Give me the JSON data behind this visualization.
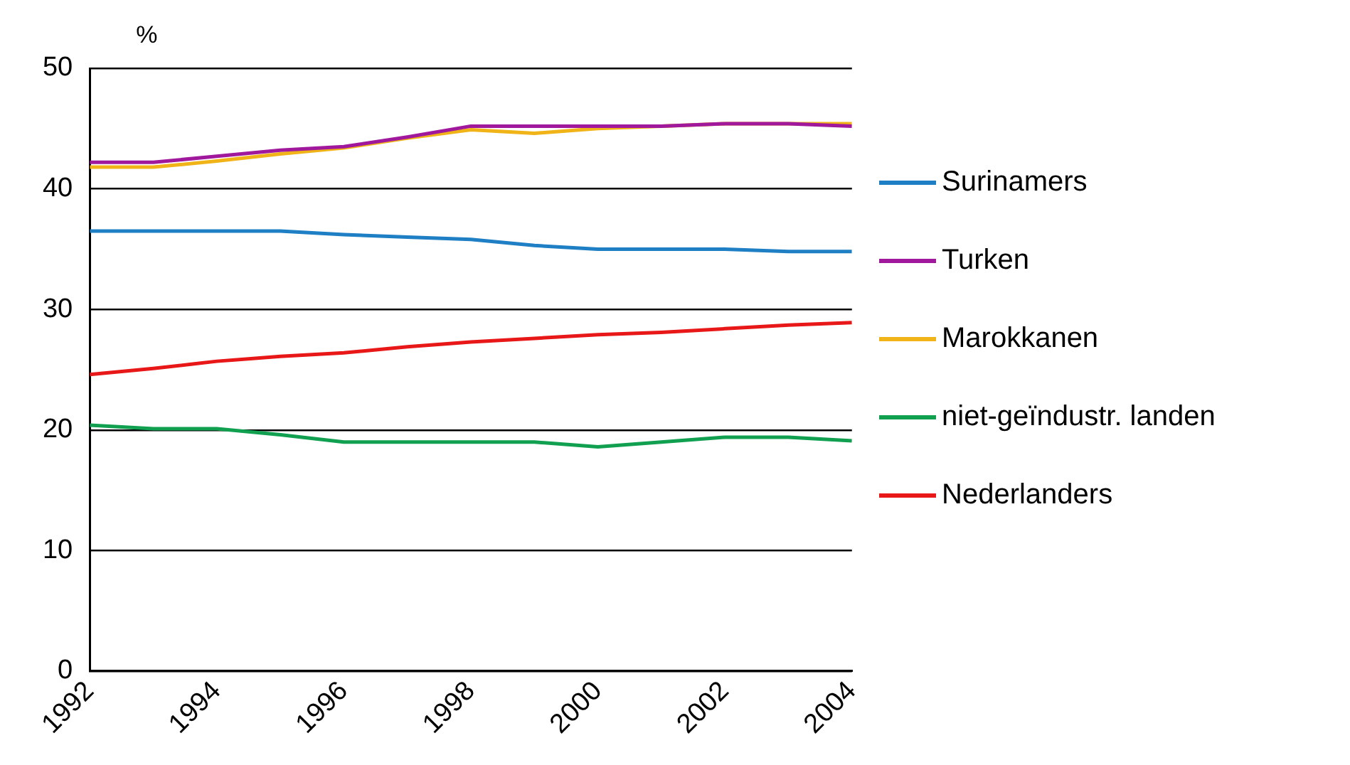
{
  "chart_data": {
    "type": "line",
    "ylabel": "%",
    "x": [
      1992,
      1993,
      1994,
      1995,
      1996,
      1997,
      1998,
      1999,
      2000,
      2001,
      2002,
      2003,
      2004
    ],
    "xlim": [
      1992,
      2004
    ],
    "xticks": [
      1992,
      1994,
      1996,
      1998,
      2000,
      2002,
      2004
    ],
    "ylim": [
      0,
      50
    ],
    "yticks": [
      0,
      10,
      20,
      30,
      40,
      50
    ],
    "grid": "y",
    "legend": "right",
    "series": [
      {
        "name": "Surinamers",
        "color": "#1f7fc4",
        "values": [
          36.5,
          36.5,
          36.5,
          36.5,
          36.2,
          36.0,
          35.8,
          35.3,
          35.0,
          35.0,
          35.0,
          34.8,
          34.8
        ]
      },
      {
        "name": "Turken",
        "color": "#a0189c",
        "values": [
          42.2,
          42.2,
          42.7,
          43.2,
          43.5,
          44.3,
          45.2,
          45.2,
          45.2,
          45.2,
          45.4,
          45.4,
          45.2
        ]
      },
      {
        "name": "Marokkanen",
        "color": "#f0b419",
        "values": [
          41.8,
          41.8,
          42.3,
          42.9,
          43.4,
          44.2,
          44.9,
          44.6,
          45.0,
          45.2,
          45.4,
          45.4,
          45.4
        ]
      },
      {
        "name": "niet-geïndustr. landen",
        "color": "#10a050",
        "values": [
          20.4,
          20.1,
          20.1,
          19.6,
          19.0,
          19.0,
          19.0,
          19.0,
          18.6,
          19.0,
          19.4,
          19.4,
          19.1
        ]
      },
      {
        "name": "Nederlanders",
        "color": "#e81818",
        "values": [
          24.6,
          25.1,
          25.7,
          26.1,
          26.4,
          26.9,
          27.3,
          27.6,
          27.9,
          28.1,
          28.4,
          28.7,
          28.9
        ]
      }
    ]
  }
}
